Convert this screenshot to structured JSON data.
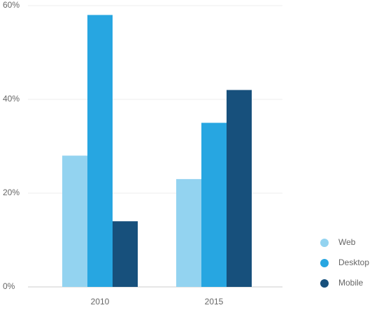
{
  "chart_data": {
    "type": "bar",
    "categories": [
      "2010",
      "2015"
    ],
    "series": [
      {
        "name": "Web",
        "color": "#93d3f0",
        "values": [
          28,
          23
        ]
      },
      {
        "name": "Desktop",
        "color": "#27a6e1",
        "values": [
          58,
          35
        ]
      },
      {
        "name": "Mobile",
        "color": "#17507c",
        "values": [
          14,
          42
        ]
      }
    ],
    "ylim": [
      0,
      60
    ],
    "yticks": [
      {
        "value": 0,
        "label": "0%"
      },
      {
        "value": 20,
        "label": "20%"
      },
      {
        "value": 40,
        "label": "40%"
      },
      {
        "value": 60,
        "label": "60%"
      }
    ],
    "grid": true,
    "legend": "right"
  }
}
